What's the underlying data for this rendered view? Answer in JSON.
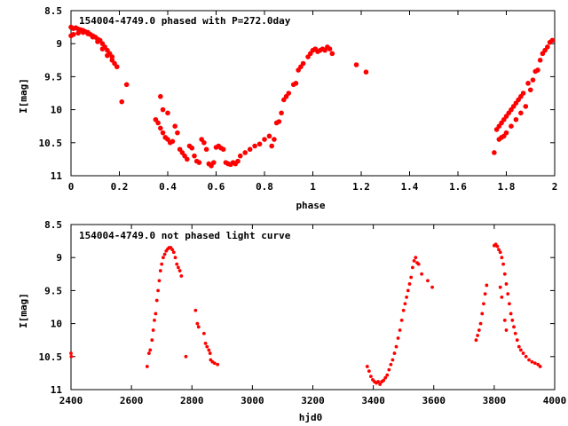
{
  "chart_data": [
    {
      "type": "scatter",
      "title": "154004-4749.0 phased with P=272.0day",
      "xlabel": "phase",
      "ylabel": "I[mag]",
      "xlim": [
        0,
        2
      ],
      "ylim": [
        8.5,
        11
      ],
      "y_inverted": true,
      "marker_color": "#ff0000",
      "x_ticks": [
        "0",
        "0.2",
        "0.4",
        "0.6",
        "0.8",
        "1",
        "1.2",
        "1.4",
        "1.6",
        "1.8",
        "2"
      ],
      "y_ticks": [
        "8.5",
        "9",
        "9.5",
        "10",
        "10.5",
        "11"
      ],
      "series": [
        {
          "points": [
            [
              0.0,
              8.75
            ],
            [
              0.01,
              8.77
            ],
            [
              0.02,
              8.76
            ],
            [
              0.03,
              8.78
            ],
            [
              0.04,
              8.79
            ],
            [
              0.05,
              8.8
            ],
            [
              0.06,
              8.82
            ],
            [
              0.07,
              8.83
            ],
            [
              0.08,
              8.86
            ],
            [
              0.09,
              8.88
            ],
            [
              0.1,
              8.9
            ],
            [
              0.11,
              8.93
            ],
            [
              0.12,
              8.95
            ],
            [
              0.13,
              9.0
            ],
            [
              0.14,
              9.05
            ],
            [
              0.15,
              9.1
            ],
            [
              0.16,
              9.15
            ],
            [
              0.17,
              9.2
            ],
            [
              0.18,
              9.3
            ],
            [
              0.19,
              9.35
            ],
            [
              0.0,
              8.88
            ],
            [
              0.01,
              8.86
            ],
            [
              0.03,
              8.84
            ],
            [
              0.05,
              8.83
            ],
            [
              0.07,
              8.85
            ],
            [
              0.09,
              8.9
            ],
            [
              0.11,
              8.97
            ],
            [
              0.13,
              9.08
            ],
            [
              0.15,
              9.18
            ],
            [
              0.17,
              9.25
            ],
            [
              0.21,
              9.88
            ],
            [
              0.23,
              9.62
            ],
            [
              0.35,
              10.15
            ],
            [
              0.36,
              10.2
            ],
            [
              0.37,
              10.28
            ],
            [
              0.38,
              10.35
            ],
            [
              0.39,
              10.42
            ],
            [
              0.4,
              10.45
            ],
            [
              0.41,
              10.5
            ],
            [
              0.42,
              10.48
            ],
            [
              0.37,
              9.8
            ],
            [
              0.38,
              10.0
            ],
            [
              0.4,
              10.05
            ],
            [
              0.43,
              10.25
            ],
            [
              0.44,
              10.35
            ],
            [
              0.45,
              10.6
            ],
            [
              0.46,
              10.65
            ],
            [
              0.47,
              10.7
            ],
            [
              0.48,
              10.75
            ],
            [
              0.49,
              10.55
            ],
            [
              0.5,
              10.58
            ],
            [
              0.51,
              10.7
            ],
            [
              0.52,
              10.78
            ],
            [
              0.53,
              10.8
            ],
            [
              0.54,
              10.45
            ],
            [
              0.55,
              10.5
            ],
            [
              0.56,
              10.6
            ],
            [
              0.57,
              10.82
            ],
            [
              0.58,
              10.85
            ],
            [
              0.59,
              10.8
            ],
            [
              0.6,
              10.57
            ],
            [
              0.61,
              10.55
            ],
            [
              0.62,
              10.58
            ],
            [
              0.63,
              10.6
            ],
            [
              0.64,
              10.8
            ],
            [
              0.65,
              10.82
            ],
            [
              0.66,
              10.83
            ],
            [
              0.67,
              10.8
            ],
            [
              0.68,
              10.82
            ],
            [
              0.69,
              10.78
            ],
            [
              0.7,
              10.7
            ],
            [
              0.72,
              10.65
            ],
            [
              0.74,
              10.6
            ],
            [
              0.76,
              10.55
            ],
            [
              0.78,
              10.52
            ],
            [
              0.8,
              10.45
            ],
            [
              0.82,
              10.4
            ],
            [
              0.83,
              10.55
            ],
            [
              0.84,
              10.45
            ],
            [
              0.85,
              10.2
            ],
            [
              0.86,
              10.18
            ],
            [
              0.87,
              10.05
            ],
            [
              0.88,
              9.85
            ],
            [
              0.89,
              9.8
            ],
            [
              0.9,
              9.75
            ],
            [
              0.92,
              9.62
            ],
            [
              0.93,
              9.6
            ],
            [
              0.94,
              9.4
            ],
            [
              0.95,
              9.35
            ],
            [
              0.96,
              9.3
            ],
            [
              0.98,
              9.2
            ],
            [
              0.99,
              9.15
            ],
            [
              1.0,
              9.1
            ],
            [
              1.01,
              9.08
            ],
            [
              1.02,
              9.12
            ],
            [
              1.03,
              9.1
            ],
            [
              1.04,
              9.08
            ],
            [
              1.05,
              9.1
            ],
            [
              1.06,
              9.05
            ],
            [
              1.07,
              9.08
            ],
            [
              1.08,
              9.15
            ],
            [
              1.18,
              9.32
            ],
            [
              1.22,
              9.43
            ],
            [
              1.75,
              10.65
            ],
            [
              1.76,
              10.3
            ],
            [
              1.77,
              10.25
            ],
            [
              1.78,
              10.2
            ],
            [
              1.79,
              10.15
            ],
            [
              1.8,
              10.1
            ],
            [
              1.81,
              10.05
            ],
            [
              1.82,
              10.0
            ],
            [
              1.83,
              9.95
            ],
            [
              1.84,
              9.9
            ],
            [
              1.85,
              9.85
            ],
            [
              1.86,
              9.8
            ],
            [
              1.87,
              9.75
            ],
            [
              1.77,
              10.45
            ],
            [
              1.78,
              10.42
            ],
            [
              1.79,
              10.4
            ],
            [
              1.8,
              10.35
            ],
            [
              1.82,
              10.25
            ],
            [
              1.84,
              10.15
            ],
            [
              1.86,
              10.05
            ],
            [
              1.88,
              9.95
            ],
            [
              1.9,
              9.7
            ],
            [
              1.91,
              9.55
            ],
            [
              1.92,
              9.42
            ],
            [
              1.93,
              9.4
            ],
            [
              1.89,
              9.6
            ],
            [
              1.94,
              9.25
            ],
            [
              1.95,
              9.15
            ],
            [
              1.96,
              9.1
            ],
            [
              1.97,
              9.05
            ],
            [
              1.98,
              8.98
            ],
            [
              1.99,
              8.95
            ]
          ]
        }
      ]
    },
    {
      "type": "scatter",
      "title": "154004-4749.0 not phased light curve",
      "xlabel": "hjd0",
      "ylabel": "I[mag]",
      "xlim": [
        2400,
        4000
      ],
      "ylim": [
        8.5,
        11
      ],
      "y_inverted": true,
      "marker_color": "#ff0000",
      "x_ticks": [
        "2400",
        "2600",
        "2800",
        "3000",
        "3200",
        "3400",
        "3600",
        "3800",
        "4000"
      ],
      "y_ticks": [
        "8.5",
        "9",
        "9.5",
        "10",
        "10.5",
        "11"
      ],
      "series": [
        {
          "points": [
            [
              2400,
              10.45
            ],
            [
              2401,
              10.5
            ],
            [
              2652,
              10.65
            ],
            [
              2658,
              10.45
            ],
            [
              2662,
              10.4
            ],
            [
              2668,
              10.25
            ],
            [
              2672,
              10.1
            ],
            [
              2676,
              9.95
            ],
            [
              2680,
              9.85
            ],
            [
              2684,
              9.65
            ],
            [
              2688,
              9.5
            ],
            [
              2692,
              9.35
            ],
            [
              2696,
              9.2
            ],
            [
              2700,
              9.1
            ],
            [
              2705,
              9.0
            ],
            [
              2710,
              8.95
            ],
            [
              2715,
              8.9
            ],
            [
              2720,
              8.87
            ],
            [
              2725,
              8.85
            ],
            [
              2730,
              8.85
            ],
            [
              2735,
              8.88
            ],
            [
              2740,
              8.92
            ],
            [
              2745,
              9.0
            ],
            [
              2750,
              9.1
            ],
            [
              2755,
              9.15
            ],
            [
              2760,
              9.2
            ],
            [
              2765,
              9.28
            ],
            [
              2812,
              9.8
            ],
            [
              2818,
              10.0
            ],
            [
              2822,
              10.05
            ],
            [
              2840,
              10.15
            ],
            [
              2845,
              10.3
            ],
            [
              2850,
              10.35
            ],
            [
              2856,
              10.4
            ],
            [
              2862,
              10.55
            ],
            [
              2868,
              10.58
            ],
            [
              2875,
              10.6
            ],
            [
              2885,
              10.62
            ],
            [
              2860,
              10.45
            ],
            [
              2780,
              10.5
            ],
            [
              3380,
              10.65
            ],
            [
              3386,
              10.72
            ],
            [
              3392,
              10.8
            ],
            [
              3398,
              10.85
            ],
            [
              3404,
              10.88
            ],
            [
              3410,
              10.9
            ],
            [
              3416,
              10.88
            ],
            [
              3422,
              10.92
            ],
            [
              3428,
              10.88
            ],
            [
              3434,
              10.86
            ],
            [
              3440,
              10.82
            ],
            [
              3446,
              10.78
            ],
            [
              3452,
              10.7
            ],
            [
              3458,
              10.62
            ],
            [
              3464,
              10.55
            ],
            [
              3470,
              10.45
            ],
            [
              3476,
              10.35
            ],
            [
              3482,
              10.22
            ],
            [
              3488,
              10.1
            ],
            [
              3494,
              9.95
            ],
            [
              3500,
              9.8
            ],
            [
              3505,
              9.7
            ],
            [
              3510,
              9.6
            ],
            [
              3515,
              9.5
            ],
            [
              3520,
              9.4
            ],
            [
              3525,
              9.3
            ],
            [
              3530,
              9.15
            ],
            [
              3535,
              9.05
            ],
            [
              3540,
              9.0
            ],
            [
              3545,
              9.08
            ],
            [
              3550,
              9.1
            ],
            [
              3560,
              9.25
            ],
            [
              3580,
              9.35
            ],
            [
              3595,
              9.45
            ],
            [
              3740,
              10.25
            ],
            [
              3745,
              10.18
            ],
            [
              3750,
              10.1
            ],
            [
              3755,
              10.0
            ],
            [
              3760,
              9.85
            ],
            [
              3765,
              9.7
            ],
            [
              3770,
              9.55
            ],
            [
              3775,
              9.42
            ],
            [
              3800,
              8.82
            ],
            [
              3805,
              8.8
            ],
            [
              3810,
              8.83
            ],
            [
              3815,
              8.88
            ],
            [
              3820,
              8.92
            ],
            [
              3825,
              9.0
            ],
            [
              3830,
              9.1
            ],
            [
              3835,
              9.25
            ],
            [
              3840,
              9.4
            ],
            [
              3845,
              9.55
            ],
            [
              3850,
              9.7
            ],
            [
              3855,
              9.85
            ],
            [
              3860,
              9.95
            ],
            [
              3865,
              10.05
            ],
            [
              3870,
              10.15
            ],
            [
              3876,
              10.25
            ],
            [
              3882,
              10.35
            ],
            [
              3888,
              10.4
            ],
            [
              3896,
              10.45
            ],
            [
              3905,
              10.5
            ],
            [
              3915,
              10.55
            ],
            [
              3925,
              10.58
            ],
            [
              3935,
              10.6
            ],
            [
              3945,
              10.62
            ],
            [
              3952,
              10.65
            ],
            [
              3820,
              9.45
            ],
            [
              3825,
              9.6
            ],
            [
              3835,
              9.95
            ],
            [
              3840,
              10.1
            ]
          ]
        }
      ]
    }
  ]
}
